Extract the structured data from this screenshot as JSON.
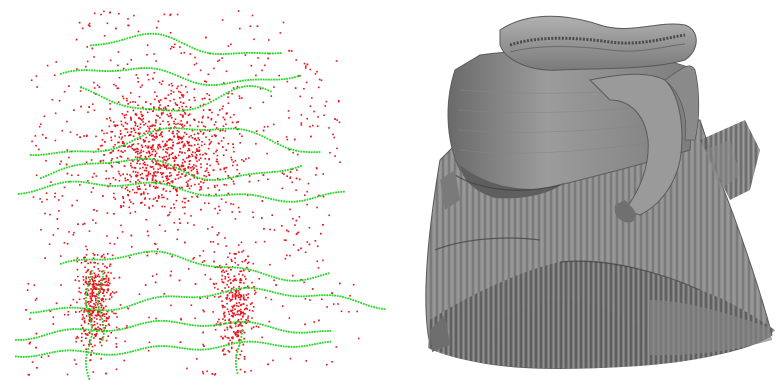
{
  "figure": {
    "left_panel": {
      "subject": "point-cloud",
      "point_color": "#e8121a",
      "curve_color": "#22d822"
    },
    "right_panel": {
      "subject": "reconstructed-surface-mesh",
      "surface_color": "#8c8c8c"
    }
  }
}
